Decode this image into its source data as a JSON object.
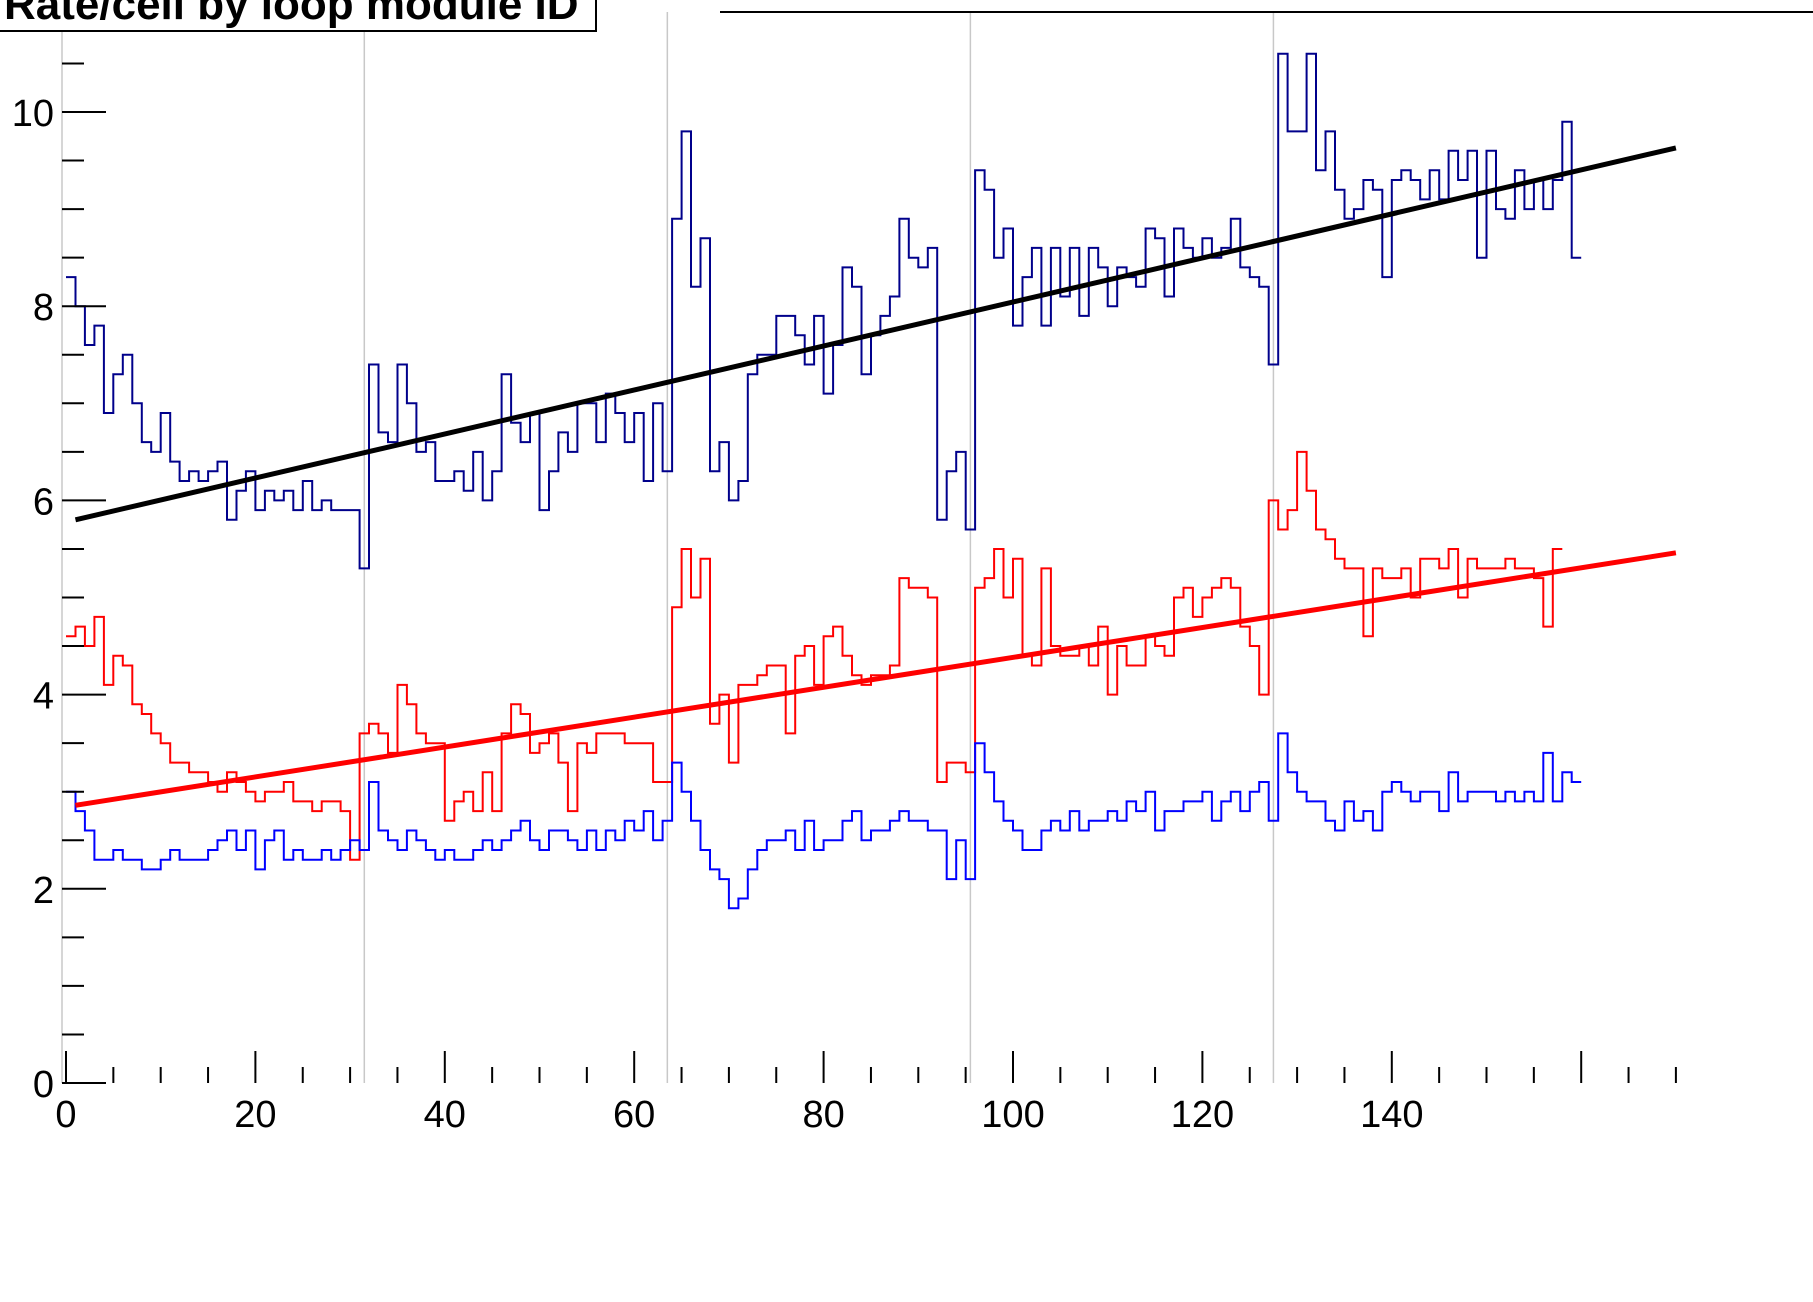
{
  "chart_data": {
    "type": "line",
    "title": "Rate/cell by loop module ID",
    "xlabel": "",
    "ylabel": "",
    "xlim": [
      0,
      160
    ],
    "ylim": [
      0,
      10.7
    ],
    "x_ticks": [
      0,
      20,
      40,
      60,
      80,
      100,
      120,
      140
    ],
    "y_ticks": [
      0,
      2,
      4,
      6,
      8,
      10
    ],
    "grid_x_lines": [
      31.5,
      63.5,
      95.5,
      127.5
    ],
    "legend": "none",
    "colors": {
      "hist_top": "#00008b",
      "hist_mid": "#ff0000",
      "hist_bottom": "#0000ff",
      "fit_top": "#000000",
      "fit_mid": "#ff0000",
      "grid": "#c8c8c8"
    },
    "series": [
      {
        "kind": "histogram",
        "color_key": "hist_top",
        "x_start": 0,
        "bin_width": 1,
        "values": [
          8.3,
          8.0,
          7.6,
          7.8,
          6.9,
          7.3,
          7.5,
          7.0,
          6.6,
          6.5,
          6.9,
          6.4,
          6.2,
          6.3,
          6.2,
          6.3,
          6.4,
          5.8,
          6.1,
          6.3,
          5.9,
          6.1,
          6.0,
          6.1,
          5.9,
          6.2,
          5.9,
          6.0,
          5.9,
          5.9,
          5.9,
          5.3,
          7.4,
          6.7,
          6.6,
          7.4,
          7.0,
          6.5,
          6.6,
          6.2,
          6.2,
          6.3,
          6.1,
          6.5,
          6.0,
          6.3,
          7.3,
          6.8,
          6.6,
          6.9,
          5.9,
          6.3,
          6.7,
          6.5,
          7.0,
          7.0,
          6.6,
          7.1,
          6.9,
          6.6,
          6.9,
          6.2,
          7.0,
          6.3,
          8.9,
          9.8,
          8.2,
          8.7,
          6.3,
          6.6,
          6.0,
          6.2,
          7.3,
          7.5,
          7.5,
          7.9,
          7.9,
          7.7,
          7.4,
          7.9,
          7.1,
          7.6,
          8.4,
          8.2,
          7.3,
          7.7,
          7.9,
          8.1,
          8.9,
          8.5,
          8.4,
          8.6,
          5.8,
          6.3,
          6.5,
          5.7,
          9.4,
          9.2,
          8.5,
          8.8,
          7.8,
          8.3,
          8.6,
          7.8,
          8.6,
          8.1,
          8.6,
          7.9,
          8.6,
          8.4,
          8.0,
          8.4,
          8.3,
          8.2,
          8.8,
          8.7,
          8.1,
          8.8,
          8.6,
          8.5,
          8.7,
          8.5,
          8.6,
          8.9,
          8.4,
          8.3,
          8.2,
          7.4,
          10.6,
          9.8,
          9.8,
          10.6,
          9.4,
          9.8,
          9.2,
          8.9,
          9.0,
          9.3,
          9.2,
          8.3,
          9.3,
          9.4,
          9.3,
          9.1,
          9.4,
          9.1,
          9.6,
          9.3,
          9.6,
          8.5,
          9.6,
          9.0,
          8.9,
          9.4,
          9.0,
          9.3,
          9.0,
          9.3,
          9.9,
          8.5
        ]
      },
      {
        "kind": "histogram",
        "color_key": "hist_mid",
        "x_start": 0,
        "bin_width": 1,
        "values": [
          4.6,
          4.7,
          4.5,
          4.8,
          4.1,
          4.4,
          4.3,
          3.9,
          3.8,
          3.6,
          3.5,
          3.3,
          3.3,
          3.2,
          3.2,
          3.1,
          3.0,
          3.2,
          3.1,
          3.0,
          2.9,
          3.0,
          3.0,
          3.1,
          2.9,
          2.9,
          2.8,
          2.9,
          2.9,
          2.8,
          2.3,
          3.6,
          3.7,
          3.6,
          3.4,
          4.1,
          3.9,
          3.6,
          3.5,
          3.5,
          2.7,
          2.9,
          3.0,
          2.8,
          3.2,
          2.8,
          3.6,
          3.9,
          3.8,
          3.4,
          3.5,
          3.6,
          3.3,
          2.8,
          3.5,
          3.4,
          3.6,
          3.6,
          3.6,
          3.5,
          3.5,
          3.5,
          3.1,
          3.1,
          4.9,
          5.5,
          5.0,
          5.4,
          3.7,
          4.0,
          3.3,
          4.1,
          4.1,
          4.2,
          4.3,
          4.3,
          3.6,
          4.4,
          4.5,
          4.1,
          4.6,
          4.7,
          4.4,
          4.2,
          4.1,
          4.2,
          4.2,
          4.3,
          5.2,
          5.1,
          5.1,
          5.0,
          3.1,
          3.3,
          3.3,
          3.2,
          5.1,
          5.2,
          5.5,
          5.0,
          5.4,
          4.4,
          4.3,
          5.3,
          4.5,
          4.4,
          4.4,
          4.5,
          4.3,
          4.7,
          4.0,
          4.5,
          4.3,
          4.3,
          4.6,
          4.5,
          4.4,
          5.0,
          5.1,
          4.8,
          5.0,
          5.1,
          5.2,
          5.1,
          4.7,
          4.5,
          4.0,
          6.0,
          5.7,
          5.9,
          6.5,
          6.1,
          5.7,
          5.6,
          5.4,
          5.3,
          5.3,
          4.6,
          5.3,
          5.2,
          5.2,
          5.3,
          5.0,
          5.4,
          5.4,
          5.3,
          5.5,
          5.0,
          5.4,
          5.3,
          5.3,
          5.3,
          5.4,
          5.3,
          5.3,
          5.2,
          4.7,
          5.5
        ]
      },
      {
        "kind": "histogram",
        "color_key": "hist_bottom",
        "x_start": 0,
        "bin_width": 1,
        "values": [
          3.0,
          2.8,
          2.6,
          2.3,
          2.3,
          2.4,
          2.3,
          2.3,
          2.2,
          2.2,
          2.3,
          2.4,
          2.3,
          2.3,
          2.3,
          2.4,
          2.5,
          2.6,
          2.4,
          2.6,
          2.2,
          2.5,
          2.6,
          2.3,
          2.4,
          2.3,
          2.3,
          2.4,
          2.3,
          2.4,
          2.5,
          2.4,
          3.1,
          2.6,
          2.5,
          2.4,
          2.6,
          2.5,
          2.4,
          2.3,
          2.4,
          2.3,
          2.3,
          2.4,
          2.5,
          2.4,
          2.5,
          2.6,
          2.7,
          2.5,
          2.4,
          2.6,
          2.6,
          2.5,
          2.4,
          2.6,
          2.4,
          2.6,
          2.5,
          2.7,
          2.6,
          2.8,
          2.5,
          2.7,
          3.3,
          3.0,
          2.7,
          2.4,
          2.2,
          2.1,
          1.8,
          1.9,
          2.2,
          2.4,
          2.5,
          2.5,
          2.6,
          2.4,
          2.7,
          2.4,
          2.5,
          2.5,
          2.7,
          2.8,
          2.5,
          2.6,
          2.6,
          2.7,
          2.8,
          2.7,
          2.7,
          2.6,
          2.6,
          2.1,
          2.5,
          2.1,
          3.5,
          3.2,
          2.9,
          2.7,
          2.6,
          2.4,
          2.4,
          2.6,
          2.7,
          2.6,
          2.8,
          2.6,
          2.7,
          2.7,
          2.8,
          2.7,
          2.9,
          2.8,
          3.0,
          2.6,
          2.8,
          2.8,
          2.9,
          2.9,
          3.0,
          2.7,
          2.9,
          3.0,
          2.8,
          3.0,
          3.1,
          2.7,
          3.6,
          3.2,
          3.0,
          2.9,
          2.9,
          2.7,
          2.6,
          2.9,
          2.7,
          2.8,
          2.6,
          3.0,
          3.1,
          3.0,
          2.9,
          3.0,
          3.0,
          2.8,
          3.2,
          2.9,
          3.0,
          3.0,
          3.0,
          2.9,
          3.0,
          2.9,
          3.0,
          2.9,
          3.4,
          2.9,
          3.2,
          3.1
        ]
      },
      {
        "kind": "fit",
        "color_key": "fit_top",
        "x": [
          1,
          170
        ],
        "y": [
          5.8,
          9.63
        ]
      },
      {
        "kind": "fit",
        "color_key": "fit_mid",
        "x": [
          1,
          170
        ],
        "y": [
          2.86,
          5.46
        ]
      }
    ]
  }
}
